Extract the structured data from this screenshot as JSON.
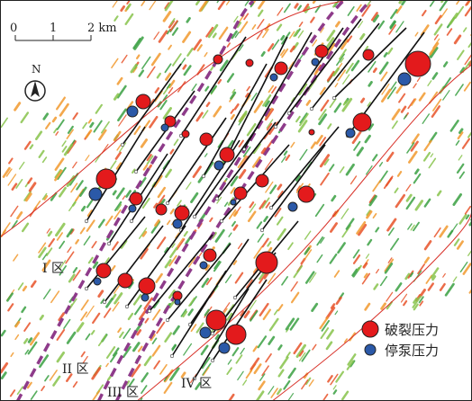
{
  "scale_bar": {
    "ticks": [
      "0",
      "1",
      "2 km"
    ]
  },
  "north_arrow": {
    "label": "N"
  },
  "zones": [
    {
      "id": "zone-1",
      "label": "I 区"
    },
    {
      "id": "zone-2",
      "label": "II 区"
    },
    {
      "id": "zone-3",
      "label": "III 区"
    },
    {
      "id": "zone-4",
      "label": "IV 区"
    }
  ],
  "legend": {
    "items": [
      {
        "label": "破裂压力",
        "color": "#e31a1c"
      },
      {
        "label": "停泵压力",
        "color": "#2b59a8"
      }
    ]
  },
  "colors": {
    "fault": "#d8322a",
    "zone_boundary": "#8e3b8a",
    "wells": "#111111",
    "texture": [
      "#3aa043",
      "#88c44c",
      "#f29a2e",
      "#e8532a"
    ]
  }
}
